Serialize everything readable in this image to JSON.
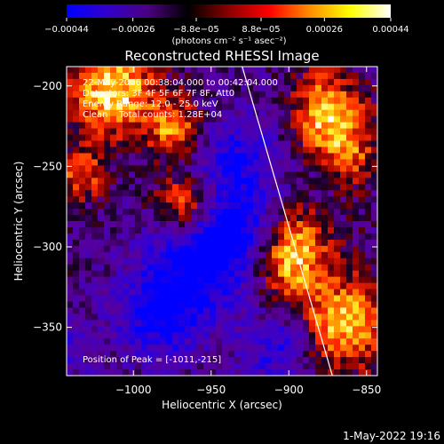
{
  "chart_data": {
    "type": "heatmap",
    "title": "Reconstructed RHESSI Image",
    "xlabel": "Heliocentric X (arcsec)",
    "ylabel": "Heliocentric Y (arcsec)",
    "xlim": [
      -1043,
      -843
    ],
    "ylim": [
      -380,
      -188
    ],
    "x_ticks": [
      -1000,
      -950,
      -900,
      -850
    ],
    "x_tick_labels": [
      "−1000",
      "−950",
      "−900",
      "−850"
    ],
    "y_ticks": [
      -200,
      -250,
      -300,
      -350
    ],
    "y_tick_labels": [
      "−200",
      "−250",
      "−300",
      "−350"
    ],
    "colorbar": {
      "min": -0.00044,
      "max": 0.00044,
      "ticks": [
        -0.00044,
        -0.00026,
        -8.8e-05,
        8.8e-05,
        0.00026,
        0.00044
      ],
      "tick_labels": [
        "−0.00044",
        "−0.00026",
        "−8.8e−05",
        "8.8e−05",
        "0.00026",
        "0.00044"
      ],
      "unit_label": "(photons cm⁻² s⁻¹ asec⁻²)",
      "colormap": [
        "#0000ff",
        "#3300cc",
        "#4b0082",
        "#000000",
        "#8b0000",
        "#ff0000",
        "#ff8c00",
        "#ffff00",
        "#ffffff"
      ]
    },
    "annotations": [
      "22-May-2006 00:38:04.000 to 00:42:04.000",
      "Detectors: 3F 4F 5F 6F 7F 8F, Att0",
      "Energy Range: 12.0 - 25.0 keV",
      "Clean    Total counts: 1.28E+04"
    ],
    "peak_label": "Position of Peak = [-1011,-215]",
    "limb_line": [
      [
        -930,
        -188
      ],
      [
        -872,
        -380
      ]
    ],
    "grid": false,
    "legend": "none"
  },
  "footer_timestamp": "1-May-2022 19:16"
}
